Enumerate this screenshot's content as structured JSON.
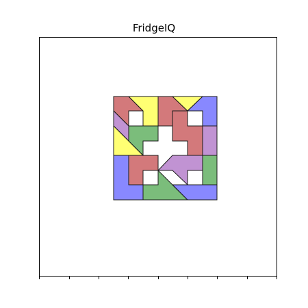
{
  "title": "FridgeIQ",
  "colors": {
    "red": "#c8585a",
    "yellow": "#ffff50",
    "blue": "#6a6aff",
    "purple": "#b278c8",
    "green": "#5aac5a",
    "outline": "#1a1a1a",
    "frame": "#000000"
  },
  "pieces": [
    {
      "name": "red-corner-top-left",
      "color": "red"
    },
    {
      "name": "yellow-top-left",
      "color": "yellow"
    },
    {
      "name": "red-top-middle",
      "color": "red"
    },
    {
      "name": "yellow-top-right",
      "color": "yellow"
    },
    {
      "name": "blue-top-right",
      "color": "blue"
    },
    {
      "name": "purple-left",
      "color": "purple"
    },
    {
      "name": "yellow-left-triangle",
      "color": "yellow"
    },
    {
      "name": "green-upper",
      "color": "green"
    },
    {
      "name": "red-right-cross",
      "color": "red"
    },
    {
      "name": "purple-right",
      "color": "purple"
    },
    {
      "name": "blue-bottom-left",
      "color": "blue"
    },
    {
      "name": "red-lower-left",
      "color": "red"
    },
    {
      "name": "purple-lower-middle",
      "color": "purple"
    },
    {
      "name": "green-lower-right",
      "color": "green"
    },
    {
      "name": "green-bottom-triangle",
      "color": "green"
    },
    {
      "name": "blue-bottom-right",
      "color": "blue"
    }
  ]
}
